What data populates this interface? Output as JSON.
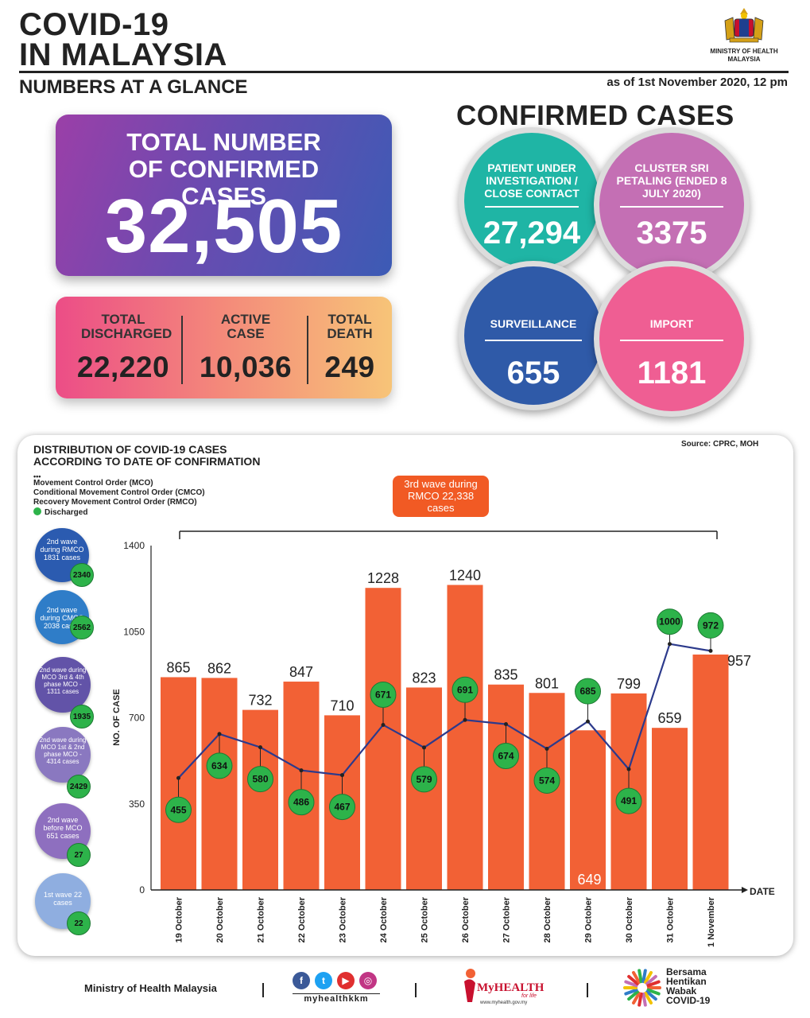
{
  "header": {
    "title_line1": "COVID-19",
    "title_line2": "IN MALAYSIA",
    "subtitle": "NUMBERS AT A GLANCE",
    "as_of": "as of 1st November 2020, 12 pm",
    "ministry": "MINISTRY OF HEALTH MALAYSIA"
  },
  "total": {
    "label": "TOTAL NUMBER OF CONFIRMED CASES",
    "value": "32,505"
  },
  "stats": [
    {
      "label": "TOTAL DISCHARGED",
      "value": "22,220"
    },
    {
      "label": "ACTIVE CASE",
      "value": "10,036"
    },
    {
      "label": "TOTAL DEATH",
      "value": "249"
    }
  ],
  "confirmed_cases": {
    "title": "CONFIRMED CASES",
    "bubbles": [
      {
        "label": "PATIENT UNDER INVESTIGATION / CLOSE CONTACT",
        "value": "27,294",
        "color": "#1fb5a5"
      },
      {
        "label": "CLUSTER SRI PETALING (ENDED 8 JULY 2020)",
        "value": "3375",
        "color": "#c46fb4"
      },
      {
        "label": "SURVEILLANCE",
        "value": "655",
        "color": "#2f5aa8"
      },
      {
        "label": "IMPORT",
        "value": "1181",
        "color": "#ef5e93"
      }
    ]
  },
  "distribution": {
    "title_line1": "DISTRIBUTION OF COVID-19 CASES",
    "title_line2": "ACCORDING TO DATE OF CONFIRMATION",
    "legend_dots": "•••",
    "legend_mco": "Movement Control Order (MCO)",
    "legend_cmco": "Conditional Movement Control Order (CMCO)",
    "legend_rmco": "Recovery Movement Control Order (RMCO)",
    "legend_discharged": "Discharged",
    "source": "Source: CPRC, MOH",
    "wave3": "3rd wave during RMCO 22,338 cases",
    "waves": [
      {
        "label": "2nd wave during RMCO 1831 cases",
        "discharged": "2340",
        "color": "#2b5bb0"
      },
      {
        "label": "2nd wave during CMCO 2038 cases",
        "discharged": "2562",
        "color": "#2f7dc8"
      },
      {
        "label": "2nd wave during MCO 3rd & 4th phase MCO - 1311 cases",
        "discharged": "1935",
        "color": "#6253a8"
      },
      {
        "label": "2nd wave during MCO 1st & 2nd phase MCO - 4314 cases",
        "discharged": "2429",
        "color": "#8a78c0"
      },
      {
        "label": "2nd wave before MCO 651 cases",
        "discharged": "27",
        "color": "#8e6fbf"
      },
      {
        "label": "1st wave 22 cases",
        "discharged": "22",
        "color": "#8faee0"
      }
    ]
  },
  "chart_data": {
    "type": "bar",
    "categories": [
      "19 October",
      "20 October",
      "21 October",
      "22 October",
      "23 October",
      "24 October",
      "25 October",
      "26 October",
      "27 October",
      "28 October",
      "29 October",
      "30 October",
      "31 October",
      "1 November"
    ],
    "series": [
      {
        "name": "",
        "values": [
          865,
          862,
          732,
          847,
          710,
          1228,
          823,
          1240,
          835,
          801,
          649,
          799,
          659,
          957
        ]
      },
      {
        "name": "Discharged",
        "values": [
          455,
          634,
          580,
          486,
          467,
          671,
          579,
          691,
          674,
          574,
          685,
          491,
          1000,
          972
        ]
      }
    ],
    "ylabel": "NO. OF CASE",
    "xlabel": "DATE",
    "yticks": [
      0,
      350,
      700,
      1050,
      1400
    ],
    "ylim": [
      0,
      1400
    ],
    "bar_color": "#f26135",
    "line_color": "#2c3a8c",
    "marker_color": "#2db34a"
  },
  "footer": {
    "ministry": "Ministry of Health Malaysia",
    "handle": "myhealthkkm",
    "myhealth": "MyHEALTH",
    "myhealth_sub": "for life",
    "myhealth_url": "www.myhealth.gov.my",
    "bersama": "Bersama Hentikan Wabak COVID-19"
  }
}
